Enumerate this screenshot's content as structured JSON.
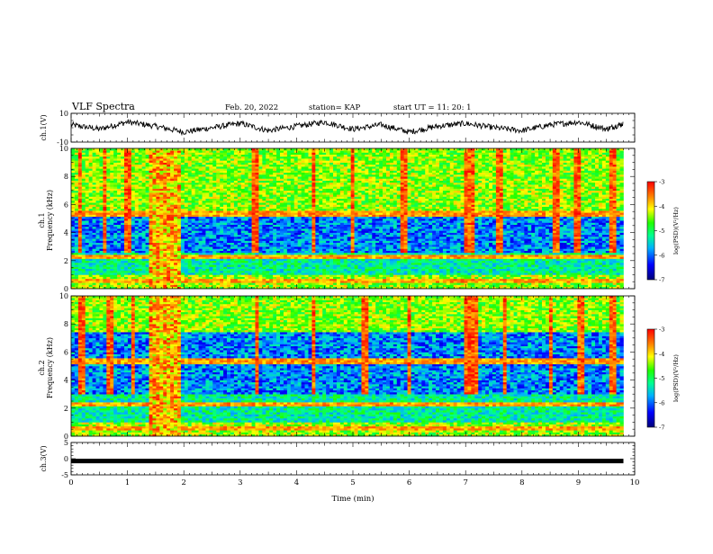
{
  "header": {
    "title": "VLF Spectra",
    "date": "Feb. 20, 2022",
    "station": "station= KAP",
    "start": "start  UT =   11: 20: 1"
  },
  "chart_data": [
    {
      "type": "line",
      "panel": "ch1-waveform",
      "ylabel": "ch.1(V)",
      "ylim": [
        -10,
        10
      ],
      "y_ticks": [
        "10",
        "-10"
      ],
      "xlim": [
        0,
        10
      ],
      "style": "noisy oscillation about ~0 V, amplitude ~5 V",
      "x": [
        0,
        0.5,
        1,
        1.5,
        2,
        2.5,
        3,
        3.5,
        4,
        4.5,
        5,
        5.5,
        6,
        6.5,
        7,
        7.5,
        8,
        8.5,
        9,
        9.5,
        9.8
      ],
      "y": [
        2,
        -1,
        4,
        1,
        -3,
        0,
        3,
        -2,
        1,
        4,
        -1,
        2,
        -3,
        1,
        3,
        0,
        -2,
        2,
        4,
        -1,
        3
      ]
    },
    {
      "type": "heatmap",
      "panel": "ch1-spectrogram",
      "ylabel": "ch.1 Frequency (kHz)",
      "ylim": [
        0,
        10
      ],
      "y_ticks": [
        "0",
        "2",
        "4",
        "6",
        "8",
        "10"
      ],
      "xlim": [
        0,
        10
      ],
      "colorbar": {
        "label": "log(PSD)(V²/Hz)",
        "range": [
          -7,
          -3
        ],
        "ticks": [
          "-3",
          "-4",
          "-5",
          "-6",
          "-7"
        ]
      },
      "bright_interval_min": [
        1.4,
        1.95
      ],
      "strong_band_kHz": [
        5.5,
        9.8
      ],
      "weak_band_kHz": [
        2.6,
        5.4
      ],
      "vertical_streaks_min": [
        0.15,
        0.6,
        1.0,
        3.25,
        4.3,
        5.0,
        5.9,
        7.05,
        7.1,
        7.6,
        8.6,
        9.0,
        9.6
      ]
    },
    {
      "type": "heatmap",
      "panel": "ch2-spectrogram",
      "ylabel": "ch.2 Frequency (kHz)",
      "ylim": [
        0,
        10
      ],
      "y_ticks": [
        "0",
        "2",
        "4",
        "6",
        "8",
        "10"
      ],
      "xlim": [
        0,
        10
      ],
      "colorbar": {
        "label": "log(PSD)(V²/Hz)",
        "range": [
          -7,
          -3
        ],
        "ticks": [
          "-3",
          "-4",
          "-5",
          "-6",
          "-7"
        ]
      },
      "bright_interval_min": [
        1.4,
        1.95
      ],
      "strong_band_kHz": [
        7.5,
        9.8
      ],
      "weak_band_kHz": [
        3.0,
        7.3
      ],
      "vertical_streaks_min": [
        0.2,
        0.7,
        1.1,
        3.3,
        4.3,
        5.2,
        6.0,
        7.05,
        7.15,
        7.7,
        8.5,
        9.05,
        9.6
      ]
    },
    {
      "type": "line",
      "panel": "ch3-waveform",
      "ylabel": "ch.3(V)",
      "ylim": [
        -5,
        5
      ],
      "y_ticks": [
        "5",
        "0",
        "-5"
      ],
      "xlim": [
        0,
        10
      ],
      "style": "thick flat trace near constant value",
      "x": [
        0,
        9.8
      ],
      "y": [
        -0.3,
        -0.3
      ]
    }
  ],
  "x_axis": {
    "label": "Time (min)",
    "ticks": [
      "0",
      "1",
      "2",
      "3",
      "4",
      "5",
      "6",
      "7",
      "8",
      "9",
      "10"
    ],
    "range": [
      0,
      10
    ]
  }
}
